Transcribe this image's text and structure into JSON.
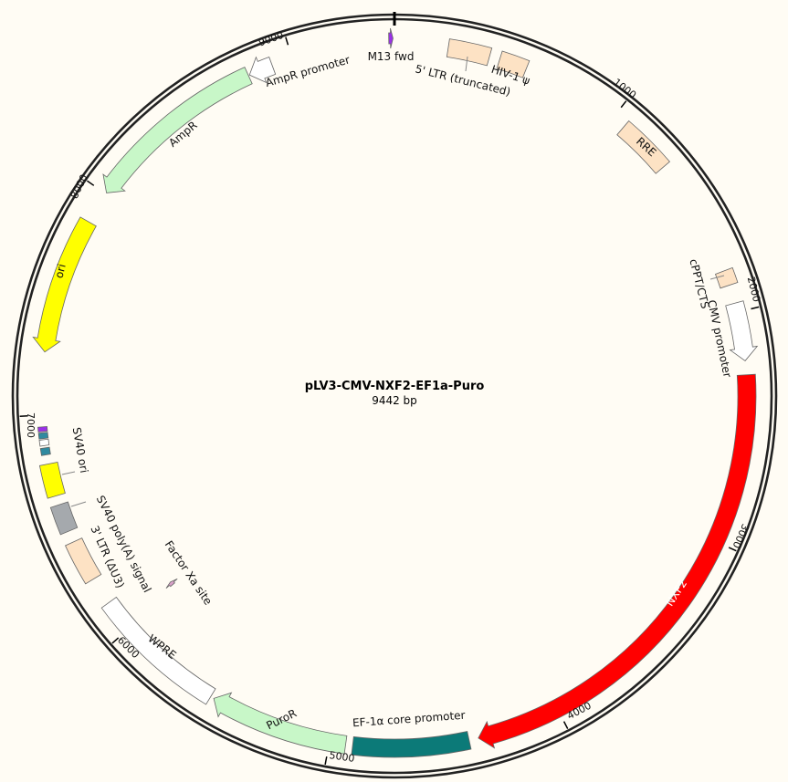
{
  "plasmid": {
    "name": "pLV3-CMV-NXF2-EF1a-Puro",
    "length_label": "9442 bp",
    "length": 9442
  },
  "ticks": [
    "1000",
    "2000",
    "3000",
    "4000",
    "5000",
    "6000",
    "7000",
    "8000",
    "9000"
  ],
  "features": [
    {
      "label": "M13 fwd",
      "start": 9418,
      "end": 9436,
      "dir": 1,
      "color": "#9b30e8"
    },
    {
      "label": "5' LTR (truncated)",
      "start": 230,
      "end": 410,
      "dir": 0,
      "color": "#fde2c4"
    },
    {
      "label": "HIV-1 ψ",
      "start": 455,
      "end": 575,
      "dir": 0,
      "color": "#fde2c4"
    },
    {
      "label": "RRE",
      "start": 1060,
      "end": 1300,
      "dir": 0,
      "color": "#fde2c4"
    },
    {
      "label": "cPPT/CTS",
      "start": 1815,
      "end": 1880,
      "dir": 0,
      "color": "#fde2c4"
    },
    {
      "label": "CMV promoter",
      "start": 1960,
      "end": 2210,
      "dir": 1,
      "color": "#ffffff"
    },
    {
      "label": "NXF2",
      "start": 2270,
      "end": 4360,
      "dir": 1,
      "color": "#ff0000"
    },
    {
      "label": "EF-1α core promoter",
      "start": 4400,
      "end": 4900,
      "dir": 0,
      "color": "#0c7a78"
    },
    {
      "label": "PuroR",
      "start": 4930,
      "end": 5530,
      "dir": 1,
      "color": "#c8f7c8"
    },
    {
      "label": "WPRE",
      "start": 5545,
      "end": 6140,
      "dir": 0,
      "color": "#ffffff"
    },
    {
      "label": "Factor Xa site",
      "start": 6022,
      "end": 6040,
      "dir": 1,
      "color": "#d8a0c8"
    },
    {
      "label": "3' LTR (ΔU3)",
      "start": 6260,
      "end": 6440,
      "dir": 0,
      "color": "#fde2c4"
    },
    {
      "label": "SV40 poly(A) signal",
      "start": 6490,
      "end": 6610,
      "dir": 0,
      "color": "#a5a9ad"
    },
    {
      "label": "SV40 ori",
      "start": 6650,
      "end": 6790,
      "dir": 0,
      "color": "#ffff00"
    },
    {
      "label": "",
      "start": 6830,
      "end": 6860,
      "dir": 0,
      "color": "#2f8aa0"
    },
    {
      "label": "",
      "start": 6870,
      "end": 6895,
      "dir": 0,
      "color": "#ffffff"
    },
    {
      "label": "",
      "start": 6900,
      "end": 6925,
      "dir": 0,
      "color": "#2f8aa0"
    },
    {
      "label": "",
      "start": 6930,
      "end": 6950,
      "dir": 0,
      "color": "#9b30e8"
    },
    {
      "label": "ori",
      "start": 7270,
      "end": 7860,
      "dir": -1,
      "color": "#ffff00"
    },
    {
      "label": "AmpR",
      "start": 8005,
      "end": 8800,
      "dir": -1,
      "color": "#c8f7c8"
    },
    {
      "label": "AmpR promoter",
      "start": 8805,
      "end": 8910,
      "dir": -1,
      "color": "#ffffff"
    }
  ]
}
